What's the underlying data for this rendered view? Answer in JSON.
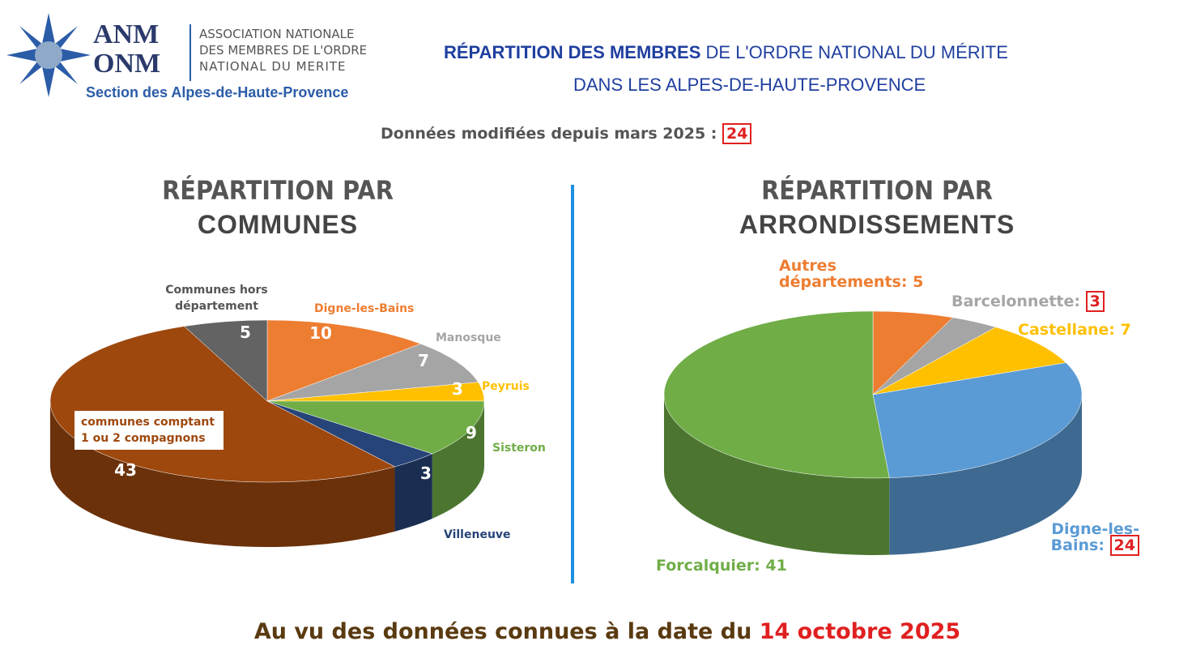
{
  "header": {
    "logo_line1": "ANM",
    "logo_line2": "ONM",
    "assoc_line1": "ASSOCIATION NATIONALE",
    "assoc_line2": "DES MEMBRES DE L'ORDRE",
    "assoc_line3": "NATIONAL DU MERITE",
    "section": "Section des Alpes-de-Haute-Provence",
    "title_bold": "RÉPARTITION DES MEMBRES",
    "title_rest": "DE L'ORDRE NATIONAL DU MÉRITE",
    "title_line2": "DANS LES ALPES-DE-HAUTE-PROVENCE",
    "modified_label": "Données modifiées depuis mars 2025 :",
    "modified_value": "24"
  },
  "chart_data": [
    {
      "type": "pie",
      "title": "RÉPARTITION PAR",
      "subtitle": "COMMUNES",
      "categories": [
        "Digne-les-Bains",
        "Manosque",
        "Peyruis",
        "Sisteron",
        "Villeneuve",
        "communes comptant 1 ou 2 compagnons",
        "Communes hors département"
      ],
      "values": [
        10,
        7,
        3,
        9,
        3,
        43,
        5
      ],
      "colors": [
        "#ed7d31",
        "#a5a5a5",
        "#ffc000",
        "#70ad47",
        "#264478",
        "#9e480e",
        "#636363"
      ]
    },
    {
      "type": "pie",
      "title": "RÉPARTITION PAR",
      "subtitle": "ARRONDISSEMENTS",
      "categories": [
        "Autres départements:",
        "Barcelonnette:",
        "Castellane:",
        "Digne-les-Bains:",
        "Forcalquier:"
      ],
      "values": [
        5,
        3,
        7,
        24,
        41
      ],
      "colors": [
        "#ed7d31",
        "#a5a5a5",
        "#ffc000",
        "#5b9bd5",
        "#70ad47"
      ]
    }
  ],
  "footer": {
    "text": "Au vu des données connues à la date du",
    "date": "14 octobre 2025"
  }
}
